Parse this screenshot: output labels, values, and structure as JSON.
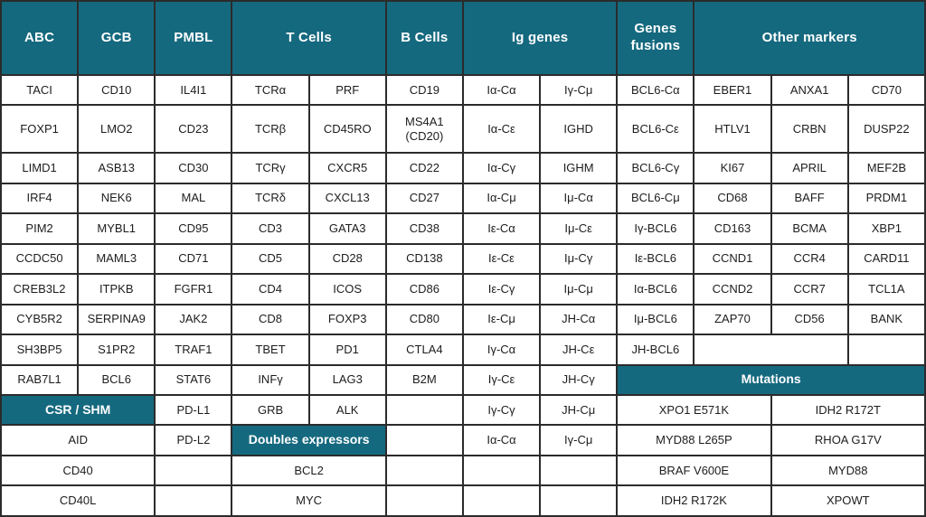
{
  "palette": {
    "teal": "#15697f",
    "border": "#2b2b2b",
    "cell_bg": "#ffffff",
    "text": "#1d1d1d",
    "header_text": "#ffffff"
  },
  "table": {
    "header": [
      {
        "label": "ABC",
        "colspan": 1
      },
      {
        "label": "GCB",
        "colspan": 1
      },
      {
        "label": "PMBL",
        "colspan": 1
      },
      {
        "label": "T Cells",
        "colspan": 2
      },
      {
        "label": "B Cells",
        "colspan": 1
      },
      {
        "label": "Ig genes",
        "colspan": 2
      },
      {
        "label": "Genes fusions",
        "colspan": 1
      },
      {
        "label": "Other markers",
        "colspan": 3
      }
    ],
    "rows": [
      {
        "cells": [
          {
            "t": "TACI"
          },
          {
            "t": "CD10"
          },
          {
            "t": "IL4I1"
          },
          {
            "t": "TCRα"
          },
          {
            "t": "PRF"
          },
          {
            "t": "CD19"
          },
          {
            "t": "Iα-Cα"
          },
          {
            "t": "Iγ-Cμ"
          },
          {
            "t": "BCL6-Cα"
          },
          {
            "t": "EBER1"
          },
          {
            "t": "ANXA1"
          },
          {
            "t": "CD70"
          }
        ]
      },
      {
        "cells": [
          {
            "t": "FOXP1"
          },
          {
            "t": "LMO2"
          },
          {
            "t": "CD23"
          },
          {
            "t": "TCRβ"
          },
          {
            "t": "CD45RO"
          },
          {
            "t": "MS4A1 (CD20)"
          },
          {
            "t": "Iα-Cε"
          },
          {
            "t": "IGHD"
          },
          {
            "t": "BCL6-Cε"
          },
          {
            "t": "HTLV1"
          },
          {
            "t": "CRBN"
          },
          {
            "t": "DUSP22"
          }
        ]
      },
      {
        "cells": [
          {
            "t": "LIMD1"
          },
          {
            "t": "ASB13"
          },
          {
            "t": "CD30"
          },
          {
            "t": "TCRγ"
          },
          {
            "t": "CXCR5"
          },
          {
            "t": "CD22"
          },
          {
            "t": "Iα-Cγ"
          },
          {
            "t": "IGHM"
          },
          {
            "t": "BCL6-Cγ"
          },
          {
            "t": "KI67"
          },
          {
            "t": "APRIL"
          },
          {
            "t": "MEF2B"
          }
        ]
      },
      {
        "cells": [
          {
            "t": "IRF4"
          },
          {
            "t": "NEK6"
          },
          {
            "t": "MAL"
          },
          {
            "t": "TCRδ"
          },
          {
            "t": "CXCL13"
          },
          {
            "t": "CD27"
          },
          {
            "t": "Iα-Cμ"
          },
          {
            "t": "Iμ-Cα"
          },
          {
            "t": "BCL6-Cμ"
          },
          {
            "t": "CD68"
          },
          {
            "t": "BAFF"
          },
          {
            "t": "PRDM1"
          }
        ]
      },
      {
        "cells": [
          {
            "t": "PIM2"
          },
          {
            "t": "MYBL1"
          },
          {
            "t": "CD95"
          },
          {
            "t": "CD3"
          },
          {
            "t": "GATA3"
          },
          {
            "t": "CD38"
          },
          {
            "t": "Iε-Cα"
          },
          {
            "t": "Iμ-Cε"
          },
          {
            "t": "Iγ-BCL6"
          },
          {
            "t": "CD163"
          },
          {
            "t": "BCMA"
          },
          {
            "t": "XBP1"
          }
        ]
      },
      {
        "cells": [
          {
            "t": "CCDC50"
          },
          {
            "t": "MAML3"
          },
          {
            "t": "CD71"
          },
          {
            "t": "CD5"
          },
          {
            "t": "CD28"
          },
          {
            "t": "CD138"
          },
          {
            "t": "Iε-Cε"
          },
          {
            "t": "Iμ-Cγ"
          },
          {
            "t": "Iε-BCL6"
          },
          {
            "t": "CCND1"
          },
          {
            "t": "CCR4"
          },
          {
            "t": "CARD11"
          }
        ]
      },
      {
        "cells": [
          {
            "t": "CREB3L2"
          },
          {
            "t": "ITPKB"
          },
          {
            "t": "FGFR1"
          },
          {
            "t": "CD4"
          },
          {
            "t": "ICOS"
          },
          {
            "t": "CD86"
          },
          {
            "t": "Iε-Cγ"
          },
          {
            "t": "Iμ-Cμ"
          },
          {
            "t": "Iα-BCL6"
          },
          {
            "t": "CCND2"
          },
          {
            "t": "CCR7"
          },
          {
            "t": "TCL1A"
          }
        ]
      },
      {
        "cells": [
          {
            "t": "CYB5R2"
          },
          {
            "t": "SERPINA9"
          },
          {
            "t": "JAK2"
          },
          {
            "t": "CD8"
          },
          {
            "t": "FOXP3"
          },
          {
            "t": "CD80"
          },
          {
            "t": "Iε-Cμ"
          },
          {
            "t": "JH-Cα"
          },
          {
            "t": "Iμ-BCL6"
          },
          {
            "t": "ZAP70"
          },
          {
            "t": "CD56"
          },
          {
            "t": "BANK"
          }
        ]
      },
      {
        "cells": [
          {
            "t": "SH3BP5"
          },
          {
            "t": "S1PR2"
          },
          {
            "t": "TRAF1"
          },
          {
            "t": "TBET"
          },
          {
            "t": "PD1"
          },
          {
            "t": "CTLA4"
          },
          {
            "t": "Iγ-Cα"
          },
          {
            "t": "JH-Cε"
          },
          {
            "t": "JH-BCL6"
          },
          {
            "t": "",
            "span": 2
          },
          {
            "t": ""
          }
        ]
      },
      {
        "cells": [
          {
            "t": "RAB7L1"
          },
          {
            "t": "BCL6"
          },
          {
            "t": "STAT6"
          },
          {
            "t": "INFγ"
          },
          {
            "t": "LAG3"
          },
          {
            "t": "B2M"
          },
          {
            "t": "Iγ-Cε"
          },
          {
            "t": "JH-Cγ"
          },
          {
            "t": "Mutations",
            "span": 4,
            "kind": "section"
          }
        ]
      },
      {
        "cells": [
          {
            "t": "CSR / SHM",
            "span": 2,
            "kind": "section"
          },
          {
            "t": "PD-L1"
          },
          {
            "t": "GRB"
          },
          {
            "t": "ALK"
          },
          {
            "t": ""
          },
          {
            "t": "Iγ-Cγ"
          },
          {
            "t": "JH-Cμ"
          },
          {
            "t": "XPO1 E571K",
            "span": 2
          },
          {
            "t": "IDH2 R172T",
            "span": 2
          }
        ]
      },
      {
        "cells": [
          {
            "t": "AID",
            "span": 2
          },
          {
            "t": "PD-L2"
          },
          {
            "t": "Doubles expressors",
            "span": 2,
            "kind": "section"
          },
          {
            "t": ""
          },
          {
            "t": "Iα-Cα"
          },
          {
            "t": "Iγ-Cμ"
          },
          {
            "t": "MYD88 L265P",
            "span": 2
          },
          {
            "t": "RHOA G17V",
            "span": 2
          }
        ]
      },
      {
        "cells": [
          {
            "t": "CD40",
            "span": 2
          },
          {
            "t": ""
          },
          {
            "t": "BCL2",
            "span": 2
          },
          {
            "t": ""
          },
          {
            "t": ""
          },
          {
            "t": ""
          },
          {
            "t": "BRAF V600E",
            "span": 2
          },
          {
            "t": "MYD88",
            "span": 2
          }
        ]
      },
      {
        "cells": [
          {
            "t": "CD40L",
            "span": 2
          },
          {
            "t": ""
          },
          {
            "t": "MYC",
            "span": 2
          },
          {
            "t": ""
          },
          {
            "t": ""
          },
          {
            "t": ""
          },
          {
            "t": "IDH2 R172K",
            "span": 2
          },
          {
            "t": "XPOWT",
            "span": 2
          }
        ]
      }
    ]
  }
}
